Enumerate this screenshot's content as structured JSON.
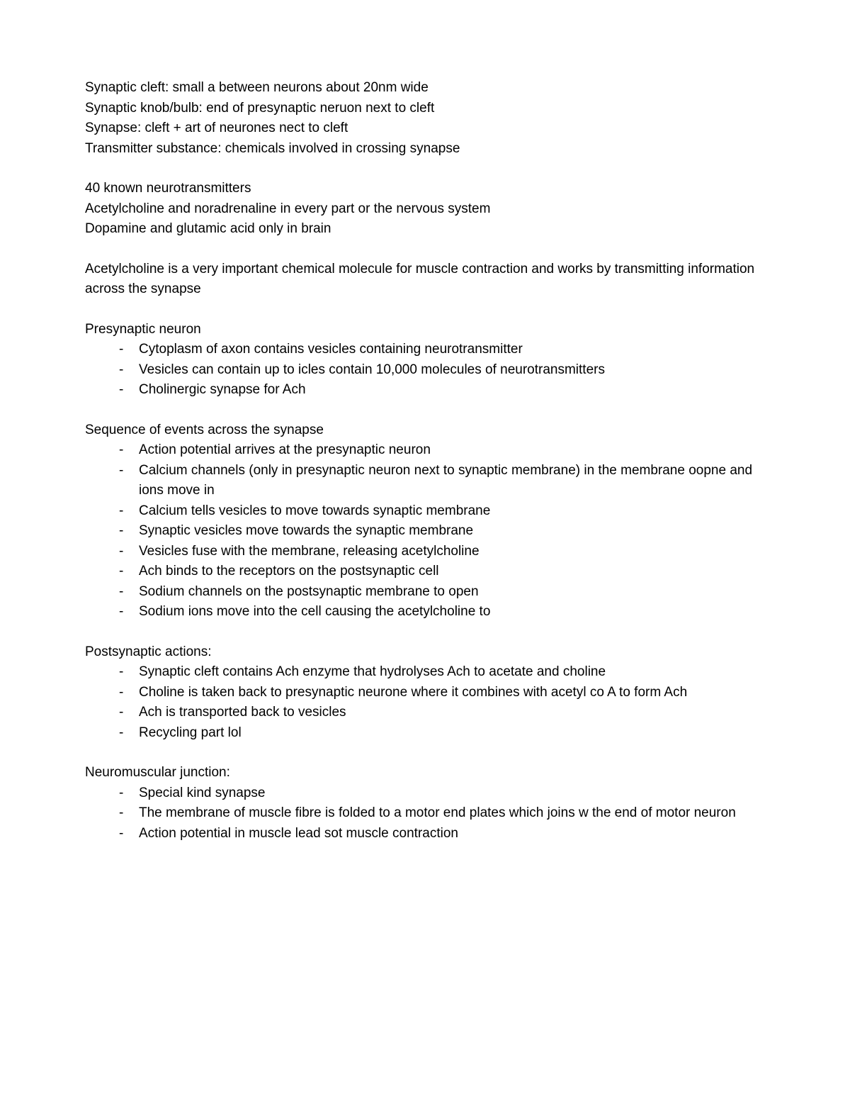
{
  "definitions": {
    "synaptic_cleft": "Synaptic cleft: small a between neurons about 20nm wide",
    "synaptic_knob": "Synaptic knob/bulb: end of presynaptic neruon next to cleft",
    "synapse": "Synapse: cleft + art of neurones nect to cleft",
    "transmitter": "Transmitter substance: chemicals involved in crossing synapse"
  },
  "neurotransmitters": {
    "line1": "40 known neurotransmitters",
    "line2": "Acetylcholine and noradrenaline in every part or the nervous system",
    "line3": "Dopamine and glutamic acid only in brain"
  },
  "acetylcholine_desc": "Acetylcholine is a very important chemical molecule for muscle contraction and works by transmitting information across the synapse",
  "presynaptic": {
    "title": "Presynaptic neuron",
    "items": [
      "Cytoplasm of axon contains vesicles containing neurotransmitter",
      "Vesicles can contain up to  icles contain 10,000 molecules of neurotransmitters",
      "Cholinergic synapse for Ach"
    ]
  },
  "sequence": {
    "title": "Sequence of events across the synapse",
    "items": [
      "Action potential arrives at the presynaptic neuron",
      "Calcium channels (only in presynaptic neuron next to synaptic membrane) in the membrane oopne and ions move in",
      "Calcium tells vesicles to move towards synaptic membrane",
      "Synaptic vesicles move towards the synaptic membrane",
      "Vesicles fuse with the membrane, releasing acetylcholine",
      "Ach binds to the receptors on the postsynaptic cell",
      "Sodium channels on the postsynaptic membrane to open",
      "Sodium ions move into the cell causing the acetylcholine to"
    ]
  },
  "postsynaptic": {
    "title": "Postsynaptic actions:",
    "items": [
      "Synaptic cleft contains Ach enzyme that hydrolyses Ach to acetate and choline",
      "Choline is taken back to presynaptic neurone where it combines with acetyl co A to form Ach",
      "Ach is transported back to vesicles",
      "Recycling part lol"
    ]
  },
  "neuromuscular": {
    "title": "Neuromuscular junction:",
    "items": [
      "Special kind synapse",
      "The membrane of muscle fibre is folded to a motor end plates which joins w the end of motor neuron",
      "Action potential in muscle lead sot muscle contraction"
    ]
  }
}
